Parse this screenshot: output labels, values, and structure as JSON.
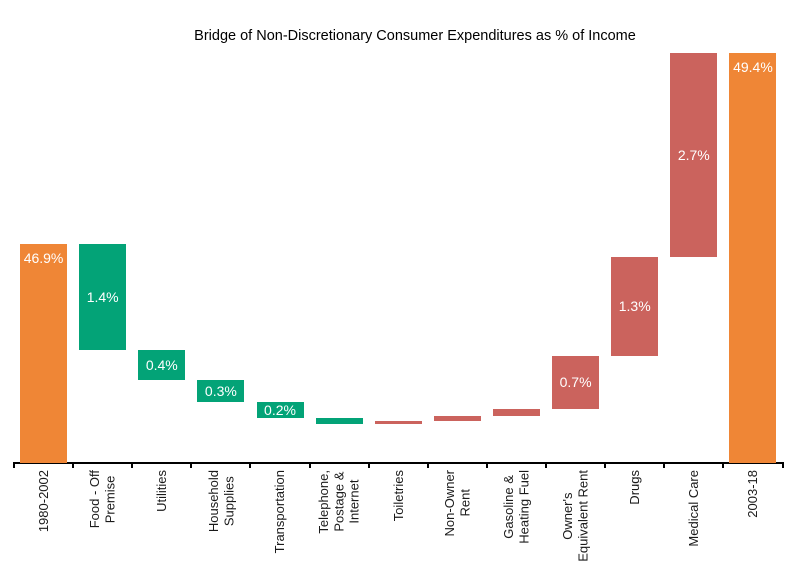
{
  "title": "Bridge of Non-Discretionary Consumer Expenditures as % of Income",
  "colors": {
    "total": "#EF8636",
    "decrease": "#03A377",
    "increase": "#CB635D",
    "value_text": "#FFFFFF",
    "axis_text": "#1A1A1A",
    "axis_line": "#000000",
    "background": "#FFFFFF"
  },
  "chart_data": {
    "type": "bar",
    "subtype": "waterfall",
    "title": "Bridge of Non-Discretionary Consumer Expenditures as % of Income",
    "xlabel": "",
    "ylabel": "",
    "ylim": [
      44.0,
      49.5
    ],
    "grid": false,
    "legend": false,
    "y_axis_shown": false,
    "categories": [
      "1980-2002",
      "Food - Off\nPremise",
      "Utilities",
      "Household\nSupplies",
      "Transportation",
      "Telephone,\nPostage &\nInternet",
      "Toiletries",
      "Non-Owner\nRent",
      "Gasoline &\nHeating Fuel",
      "Owner's\nEquivalent Rent",
      "Drugs",
      "Medical Care",
      "2003-18"
    ],
    "bars": [
      {
        "label": "1980-2002",
        "kind": "total",
        "value": 46.9,
        "start": 44.0,
        "end": 46.9,
        "display": "46.9%",
        "label_pos": "top"
      },
      {
        "label": "Food - Off\nPremise",
        "kind": "decrease",
        "value": -1.4,
        "start": 46.9,
        "end": 45.5,
        "display": "1.4%",
        "label_pos": "mid"
      },
      {
        "label": "Utilities",
        "kind": "decrease",
        "value": -0.4,
        "start": 45.5,
        "end": 45.1,
        "display": "0.4%",
        "label_pos": "mid"
      },
      {
        "label": "Household\nSupplies",
        "kind": "decrease",
        "value": -0.3,
        "start": 45.1,
        "end": 44.8,
        "display": "0.3%",
        "label_pos": "mid"
      },
      {
        "label": "Transportation",
        "kind": "decrease",
        "value": -0.2,
        "start": 44.8,
        "end": 44.6,
        "display": "0.2%",
        "label_pos": "mid"
      },
      {
        "label": "Telephone,\nPostage &\nInternet",
        "kind": "decrease",
        "value": -0.08,
        "start": 44.6,
        "end": 44.52,
        "display": "",
        "label_pos": "mid"
      },
      {
        "label": "Toiletries",
        "kind": "increase",
        "value": 0.03,
        "start": 44.52,
        "end": 44.55,
        "display": "",
        "label_pos": "mid"
      },
      {
        "label": "Non-Owner\nRent",
        "kind": "increase",
        "value": 0.07,
        "start": 44.55,
        "end": 44.62,
        "display": "",
        "label_pos": "mid"
      },
      {
        "label": "Gasoline &\nHeating Fuel",
        "kind": "increase",
        "value": 0.1,
        "start": 44.62,
        "end": 44.72,
        "display": "",
        "label_pos": "mid"
      },
      {
        "label": "Owner's\nEquivalent Rent",
        "kind": "increase",
        "value": 0.7,
        "start": 44.72,
        "end": 45.42,
        "display": "0.7%",
        "label_pos": "mid"
      },
      {
        "label": "Drugs",
        "kind": "increase",
        "value": 1.3,
        "start": 45.42,
        "end": 46.72,
        "display": "1.3%",
        "label_pos": "mid"
      },
      {
        "label": "Medical Care",
        "kind": "increase",
        "value": 2.7,
        "start": 46.72,
        "end": 49.42,
        "display": "2.7%",
        "label_pos": "mid"
      },
      {
        "label": "2003-18",
        "kind": "total",
        "value": 49.4,
        "start": 44.0,
        "end": 49.42,
        "display": "49.4%",
        "label_pos": "top"
      }
    ]
  }
}
